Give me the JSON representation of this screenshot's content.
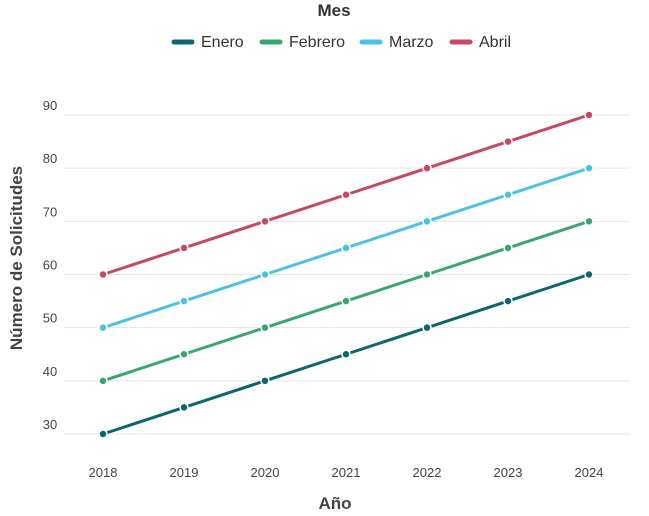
{
  "chart_data": {
    "type": "line",
    "x": [
      2018,
      2019,
      2020,
      2021,
      2022,
      2023,
      2024
    ],
    "x_tick_labels": [
      "2018",
      "2019",
      "2020",
      "2021",
      "2022",
      "2023",
      "2024"
    ],
    "y_tick_labels": [
      "30",
      "40",
      "50",
      "60",
      "70",
      "80",
      "90"
    ],
    "y_ticks": [
      30,
      40,
      50,
      60,
      70,
      80,
      90
    ],
    "ylim": [
      30,
      90
    ],
    "xlabel": "Año",
    "ylabel": "Número de Solicitudes",
    "legend_title": "Mes",
    "legend_position": "top-center",
    "grid": true,
    "series": [
      {
        "name": "Enero",
        "values": [
          30,
          35,
          40,
          45,
          50,
          55,
          60
        ],
        "color": "#0e6570"
      },
      {
        "name": "Febrero",
        "values": [
          40,
          45,
          50,
          55,
          60,
          65,
          70
        ],
        "color": "#3aa66f"
      },
      {
        "name": "Marzo",
        "values": [
          50,
          55,
          60,
          65,
          70,
          75,
          80
        ],
        "color": "#4dc2e0"
      },
      {
        "name": "Abril",
        "values": [
          60,
          65,
          70,
          75,
          80,
          85,
          90
        ],
        "color": "#c64a5f"
      }
    ]
  }
}
